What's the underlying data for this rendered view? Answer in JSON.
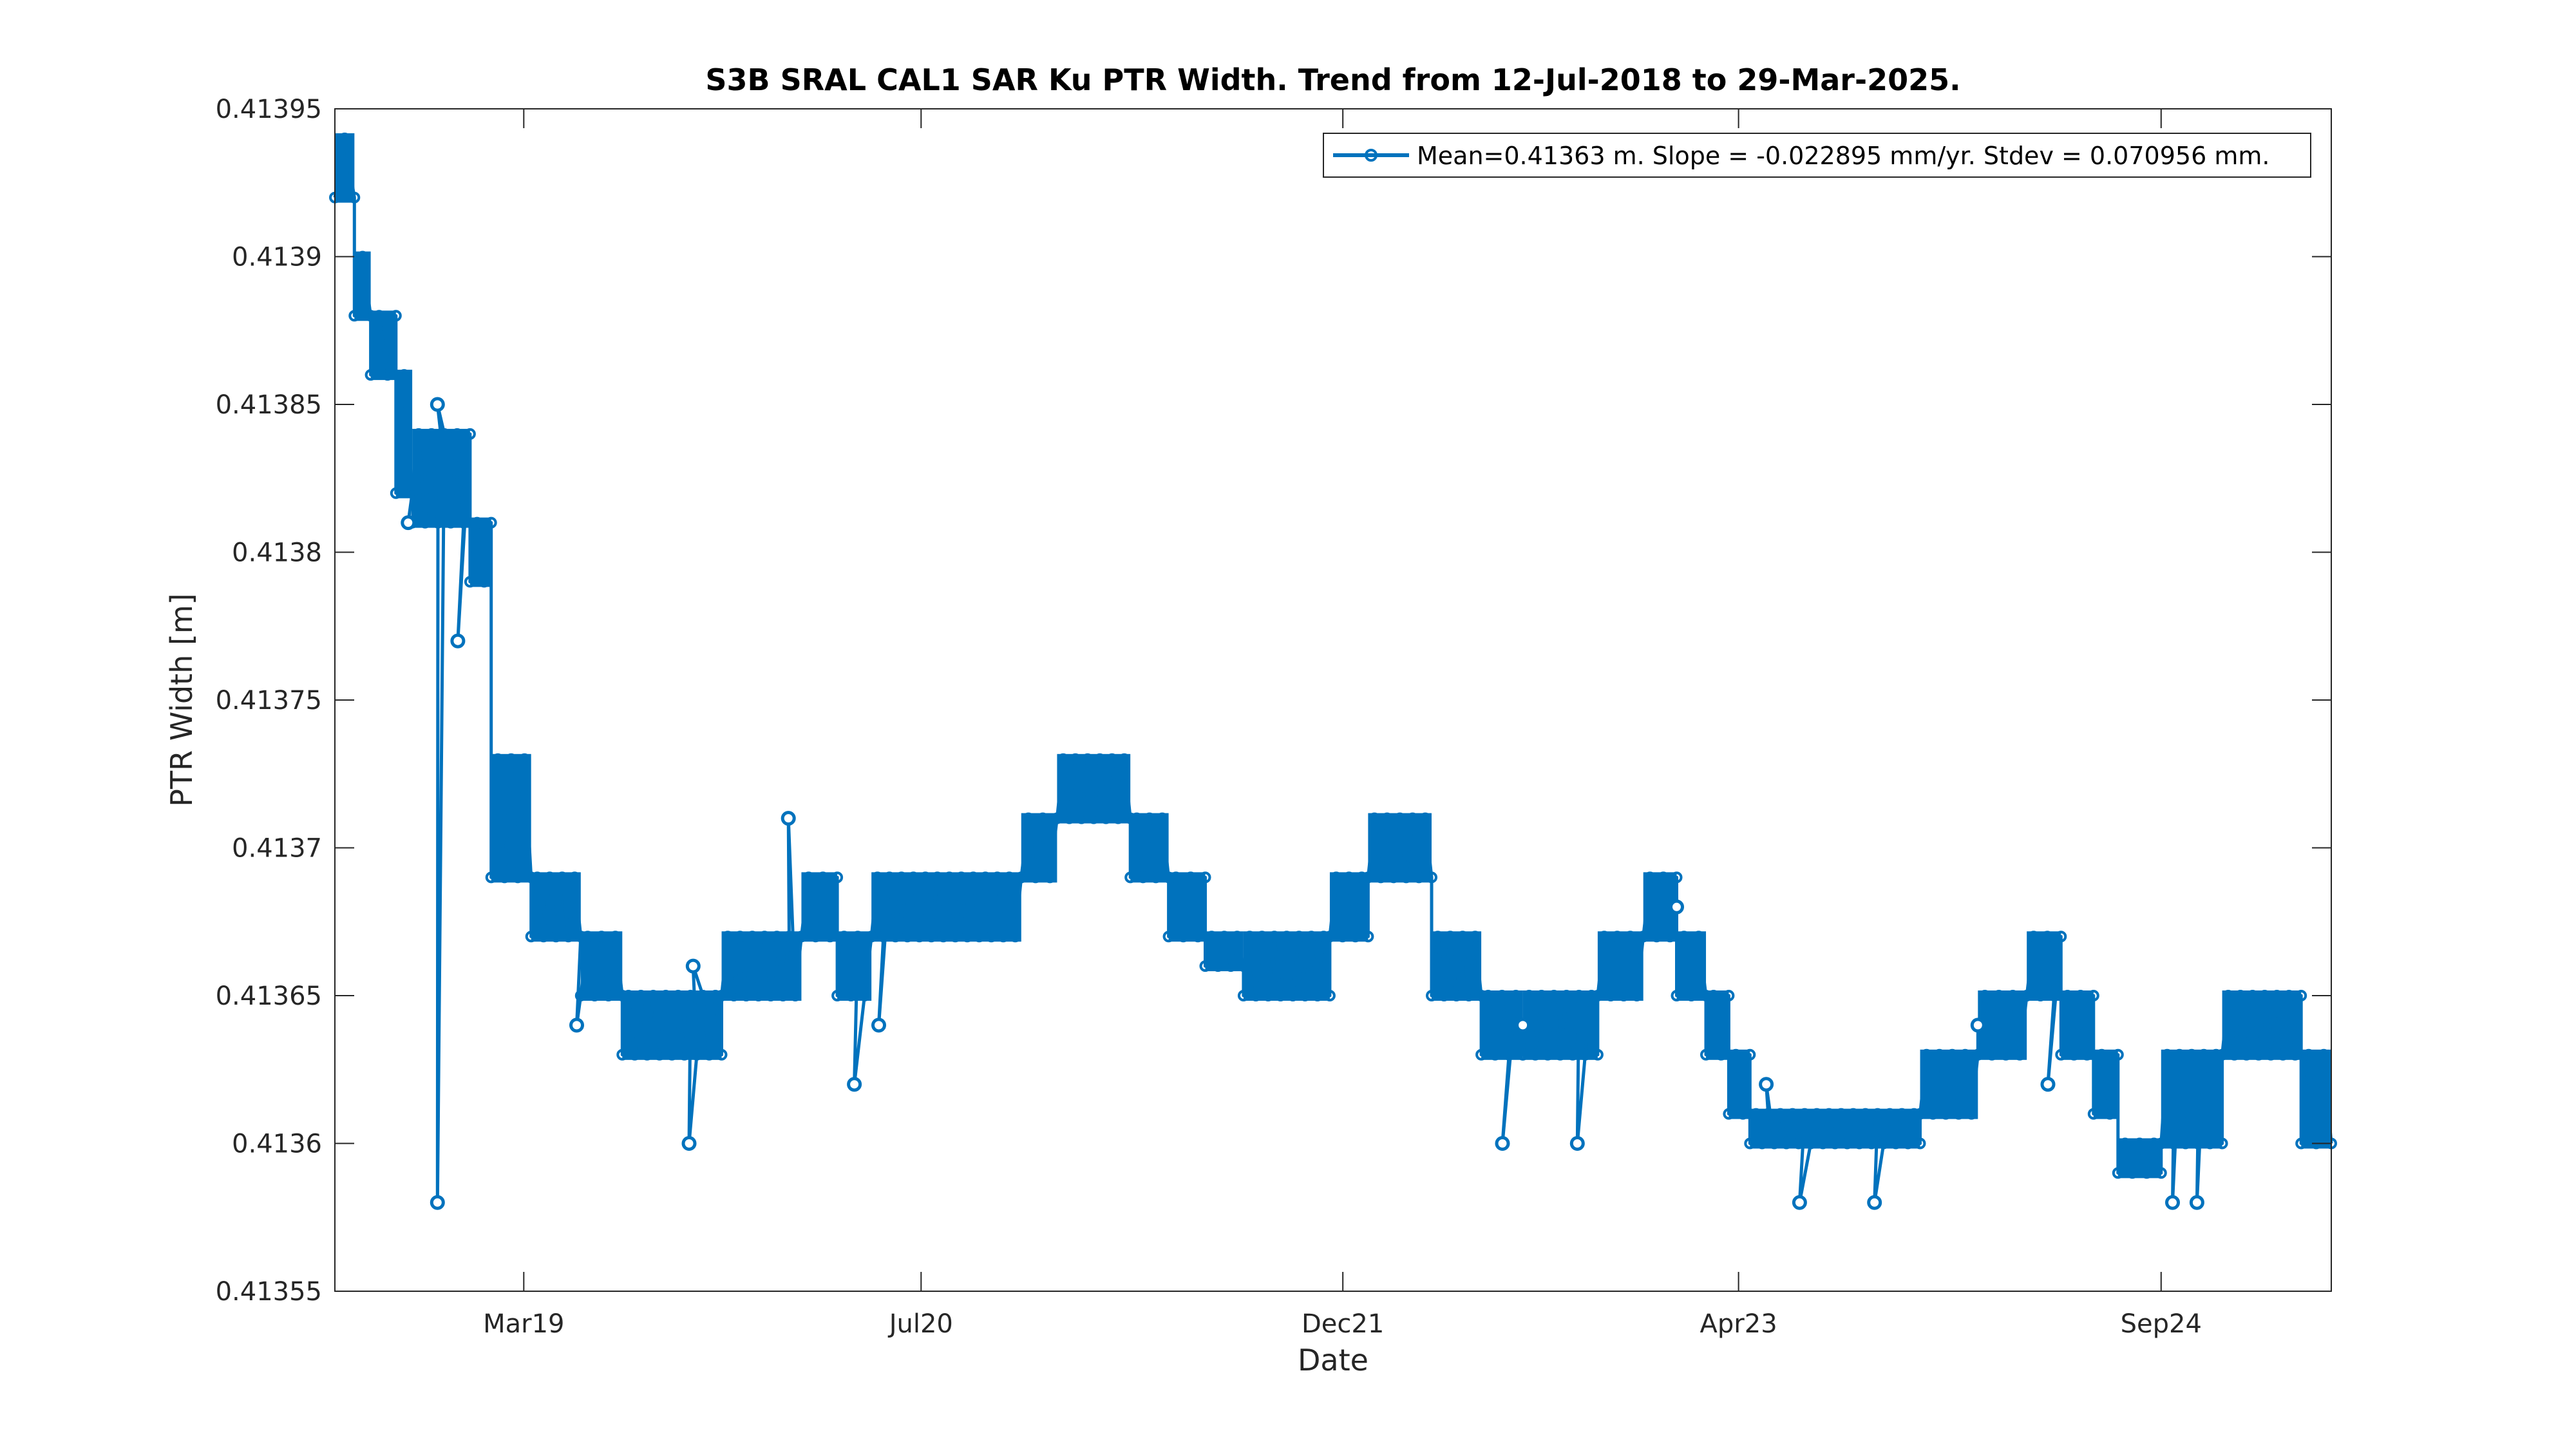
{
  "chart_data": {
    "type": "line",
    "title": "S3B SRAL CAL1 SAR Ku PTR Width. Trend from 12-Jul-2018 to 29-Mar-2025.",
    "xlabel": "Date",
    "ylabel": "PTR Width [m]",
    "xlim": [
      "2018-07-12",
      "2025-03-29"
    ],
    "ylim": [
      0.41355,
      0.41395
    ],
    "x_ticks": [
      {
        "date": "2019-03-01",
        "label": "Mar19"
      },
      {
        "date": "2020-07-01",
        "label": "Jul20"
      },
      {
        "date": "2021-12-01",
        "label": "Dec21"
      },
      {
        "date": "2023-04-01",
        "label": "Apr23"
      },
      {
        "date": "2024-09-01",
        "label": "Sep24"
      }
    ],
    "y_ticks": [
      {
        "value": 0.41355,
        "label": "0.41355"
      },
      {
        "value": 0.4136,
        "label": "0.4136"
      },
      {
        "value": 0.41365,
        "label": "0.41365"
      },
      {
        "value": 0.4137,
        "label": "0.4137"
      },
      {
        "value": 0.41375,
        "label": "0.41375"
      },
      {
        "value": 0.4138,
        "label": "0.4138"
      },
      {
        "value": 0.41385,
        "label": "0.41385"
      },
      {
        "value": 0.4139,
        "label": "0.4139"
      },
      {
        "value": 0.41395,
        "label": "0.41395"
      }
    ],
    "grid": false,
    "legend_position": "top-right",
    "series_color": "#0072BD",
    "series": [
      {
        "name": "Mean=0.41363 m. Slope = -0.022895 mm/yr. Stdev = 0.070956 mm.",
        "marker": "circle",
        "bands": [
          {
            "start": "2018-07-12",
            "end": "2018-08-05",
            "low": 0.41392,
            "high": 0.41394
          },
          {
            "start": "2018-08-05",
            "end": "2018-08-25",
            "low": 0.41388,
            "high": 0.4139
          },
          {
            "start": "2018-08-25",
            "end": "2018-09-25",
            "low": 0.41386,
            "high": 0.41388
          },
          {
            "start": "2018-09-25",
            "end": "2018-10-15",
            "low": 0.41382,
            "high": 0.41386
          },
          {
            "start": "2018-10-15",
            "end": "2018-12-25",
            "low": 0.41381,
            "high": 0.41384
          },
          {
            "start": "2018-12-25",
            "end": "2019-01-20",
            "low": 0.41379,
            "high": 0.41381
          },
          {
            "start": "2019-01-20",
            "end": "2019-03-10",
            "low": 0.41369,
            "high": 0.41373
          },
          {
            "start": "2019-03-10",
            "end": "2019-05-10",
            "low": 0.41367,
            "high": 0.41369
          },
          {
            "start": "2019-05-10",
            "end": "2019-06-30",
            "low": 0.41365,
            "high": 0.41367
          },
          {
            "start": "2019-06-30",
            "end": "2019-10-30",
            "low": 0.41363,
            "high": 0.41365
          },
          {
            "start": "2019-10-30",
            "end": "2020-02-05",
            "low": 0.41365,
            "high": 0.41367
          },
          {
            "start": "2020-02-05",
            "end": "2020-03-20",
            "low": 0.41367,
            "high": 0.41369
          },
          {
            "start": "2020-03-20",
            "end": "2020-05-01",
            "low": 0.41365,
            "high": 0.41367
          },
          {
            "start": "2020-05-01",
            "end": "2020-11-01",
            "low": 0.41367,
            "high": 0.41369
          },
          {
            "start": "2020-11-01",
            "end": "2020-12-15",
            "low": 0.41369,
            "high": 0.41371
          },
          {
            "start": "2020-12-15",
            "end": "2021-03-15",
            "low": 0.41371,
            "high": 0.41373
          },
          {
            "start": "2021-03-15",
            "end": "2021-05-01",
            "low": 0.41369,
            "high": 0.41371
          },
          {
            "start": "2021-05-01",
            "end": "2021-06-15",
            "low": 0.41367,
            "high": 0.41369
          },
          {
            "start": "2021-06-15",
            "end": "2021-08-01",
            "low": 0.41366,
            "high": 0.41367
          },
          {
            "start": "2021-08-01",
            "end": "2021-11-15",
            "low": 0.41365,
            "high": 0.41367
          },
          {
            "start": "2021-11-15",
            "end": "2022-01-01",
            "low": 0.41367,
            "high": 0.41369
          },
          {
            "start": "2022-01-01",
            "end": "2022-03-20",
            "low": 0.41369,
            "high": 0.41371
          },
          {
            "start": "2022-03-20",
            "end": "2022-05-20",
            "low": 0.41365,
            "high": 0.41367
          },
          {
            "start": "2022-05-20",
            "end": "2022-07-10",
            "low": 0.41363,
            "high": 0.41365
          },
          {
            "start": "2022-07-10",
            "end": "2022-10-10",
            "low": 0.41363,
            "high": 0.41365
          },
          {
            "start": "2022-10-10",
            "end": "2022-12-05",
            "low": 0.41365,
            "high": 0.41367
          },
          {
            "start": "2022-12-05",
            "end": "2023-01-15",
            "low": 0.41367,
            "high": 0.41369
          },
          {
            "start": "2023-01-15",
            "end": "2023-02-20",
            "low": 0.41365,
            "high": 0.41367
          },
          {
            "start": "2023-02-20",
            "end": "2023-03-20",
            "low": 0.41363,
            "high": 0.41365
          },
          {
            "start": "2023-03-20",
            "end": "2023-04-15",
            "low": 0.41361,
            "high": 0.41363
          },
          {
            "start": "2023-04-15",
            "end": "2023-11-10",
            "low": 0.4136,
            "high": 0.41361
          },
          {
            "start": "2023-11-10",
            "end": "2024-01-20",
            "low": 0.41361,
            "high": 0.41363
          },
          {
            "start": "2024-01-20",
            "end": "2024-03-20",
            "low": 0.41363,
            "high": 0.41365
          },
          {
            "start": "2024-03-20",
            "end": "2024-05-01",
            "low": 0.41365,
            "high": 0.41367
          },
          {
            "start": "2024-05-01",
            "end": "2024-06-10",
            "low": 0.41363,
            "high": 0.41365
          },
          {
            "start": "2024-06-10",
            "end": "2024-07-10",
            "low": 0.41361,
            "high": 0.41363
          },
          {
            "start": "2024-07-10",
            "end": "2024-09-01",
            "low": 0.41359,
            "high": 0.4136
          },
          {
            "start": "2024-09-01",
            "end": "2024-11-15",
            "low": 0.4136,
            "high": 0.41363
          },
          {
            "start": "2024-11-15",
            "end": "2025-02-20",
            "low": 0.41363,
            "high": 0.41365
          },
          {
            "start": "2025-02-20",
            "end": "2025-03-29",
            "low": 0.4136,
            "high": 0.41363
          }
        ],
        "outliers": [
          {
            "date": "2018-10-10",
            "value": 0.41381
          },
          {
            "date": "2018-11-15",
            "value": 0.41358
          },
          {
            "date": "2018-11-15",
            "value": 0.41385
          },
          {
            "date": "2018-12-10",
            "value": 0.41377
          },
          {
            "date": "2019-05-05",
            "value": 0.41364
          },
          {
            "date": "2019-09-20",
            "value": 0.4136
          },
          {
            "date": "2019-09-25",
            "value": 0.41366
          },
          {
            "date": "2020-01-20",
            "value": 0.41371
          },
          {
            "date": "2020-04-10",
            "value": 0.41362
          },
          {
            "date": "2020-05-10",
            "value": 0.41364
          },
          {
            "date": "2022-06-15",
            "value": 0.4136
          },
          {
            "date": "2022-07-10",
            "value": 0.41364
          },
          {
            "date": "2022-09-15",
            "value": 0.4136
          },
          {
            "date": "2023-01-15",
            "value": 0.41368
          },
          {
            "date": "2023-05-05",
            "value": 0.41362
          },
          {
            "date": "2023-06-15",
            "value": 0.41358
          },
          {
            "date": "2023-09-15",
            "value": 0.41358
          },
          {
            "date": "2024-01-20",
            "value": 0.41364
          },
          {
            "date": "2024-04-15",
            "value": 0.41362
          },
          {
            "date": "2024-09-15",
            "value": 0.41358
          },
          {
            "date": "2024-10-15",
            "value": 0.41358
          }
        ]
      }
    ]
  }
}
